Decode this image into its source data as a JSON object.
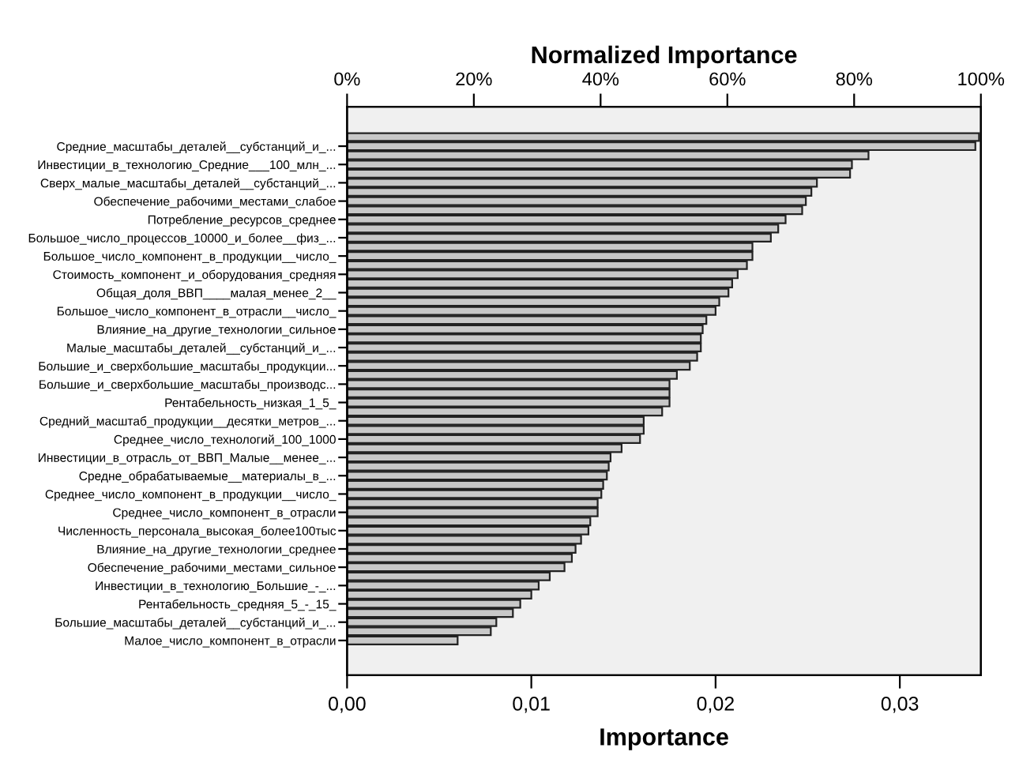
{
  "chart_data": {
    "type": "bar",
    "orientation": "horizontal",
    "xlabel": "Importance",
    "x2label": "Normalized Importance",
    "categories": [
      null,
      "Средние_масштабы_деталей__субстанций_и_...",
      null,
      "Инвестиции_в_технологию_Средние___100_млн_...",
      null,
      "Сверх_малые_масштабы_деталей__субстанций_...",
      null,
      "Обеспечение_рабочими_местами_слабое",
      null,
      "Потребление_ресурсов_среднее",
      null,
      "Большое_число_процессов_10000_и_более__физ_...",
      null,
      "Большое_число_компонент_в_продукции__число_",
      null,
      "Стоимость_компонент_и_оборудования_средняя",
      null,
      "Общая_доля_ВВП____малая_менее_2__",
      null,
      "Большое_число_компонент_в_отрасли__число_",
      null,
      "Влияние_на_другие_технологии_сильное",
      null,
      "Малые_масштабы_деталей__субстанций_и_...",
      null,
      "Большие_и_сверхбольшие_масштабы_продукции...",
      null,
      "Большие_и_сверхбольшие_масштабы_производс...",
      null,
      "Рентабельность_низкая_1_5_",
      null,
      "Средний_масштаб_продукции__десятки_метров_...",
      null,
      "Среднее_число_технологий_100_1000",
      null,
      "Инвестиции_в_отрасль_от_ВВП_Малые__менее_...",
      null,
      "Средне_обрабатываемые__материалы_в_...",
      null,
      "Среднее_число_компонент_в_продукции__число_",
      null,
      "Среднее_число_компонент_в_отрасли",
      null,
      "Численность_персонала_высокая_более100тыс",
      null,
      "Влияние_на_другие_технологии_среднее",
      null,
      "Обеспечение_рабочими_местами_сильное",
      null,
      "Инвестиции_в_технологию_Большие_-_...",
      null,
      "Рентабельность_средняя_5_-_15_",
      null,
      "Большие_масштабы_деталей__субстанций_и_...",
      null,
      "Малое_число_компонент_в_отрасли"
    ],
    "series": [
      {
        "color": "#c8c8c8",
        "values": [
          0.0343,
          0.0341,
          0.0283,
          0.0274,
          0.0273,
          0.0255,
          0.0252,
          0.0249,
          0.0247,
          0.0238,
          0.0234,
          0.023,
          0.022,
          0.022,
          0.0217,
          0.0212,
          0.0209,
          0.0207,
          0.0202,
          0.02,
          0.0195,
          0.0193,
          0.0192,
          0.0192,
          0.019,
          0.0186,
          0.0179,
          0.0175,
          0.0175,
          0.0175,
          0.0171,
          0.0161,
          0.0161,
          0.0159,
          0.0149,
          0.0143,
          0.0142,
          0.0141,
          0.0139,
          0.0138,
          0.0136,
          0.0136,
          0.0132,
          0.0131,
          0.0127,
          0.0124,
          0.0122,
          0.0118,
          0.011,
          0.0104,
          0.01,
          0.0094,
          0.009,
          0.0081,
          0.0078,
          0.006
        ]
      }
    ],
    "xlim": [
      0,
      0.0344
    ],
    "xticks": [
      {
        "value": 0,
        "label": "0,00"
      },
      {
        "value": 0.01,
        "label": "0,01"
      },
      {
        "value": 0.02,
        "label": "0,02"
      },
      {
        "value": 0.03,
        "label": "0,03"
      }
    ],
    "x2lim": [
      0,
      100
    ],
    "x2ticks": [
      {
        "value": 0,
        "label": "0%"
      },
      {
        "value": 20,
        "label": "20%"
      },
      {
        "value": 40,
        "label": "40%"
      },
      {
        "value": 60,
        "label": "60%"
      },
      {
        "value": 80,
        "label": "80%"
      },
      {
        "value": 100,
        "label": "100%"
      }
    ]
  }
}
